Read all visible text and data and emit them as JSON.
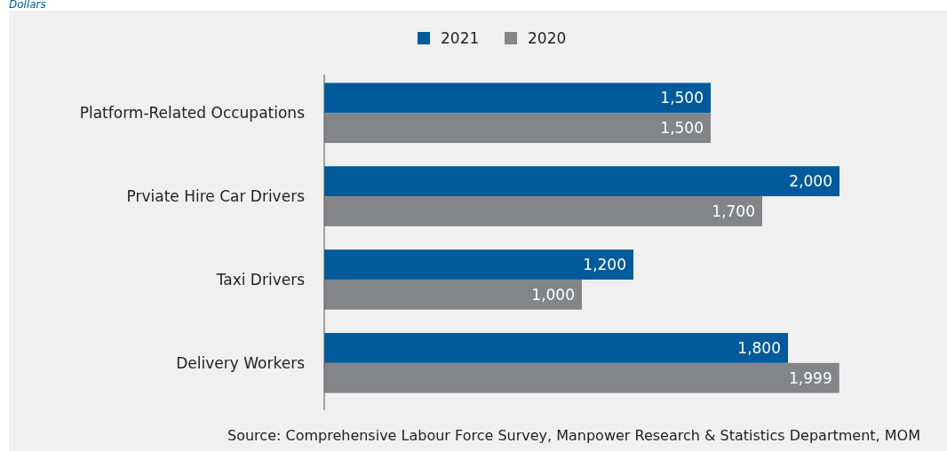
{
  "chart_data": {
    "type": "bar",
    "orientation": "horizontal",
    "categories": [
      "Platform-Related Occupations",
      "Prviate Hire Car Drivers",
      "Taxi Drivers",
      "Delivery Workers"
    ],
    "series": [
      {
        "name": "2021",
        "color": "#005a9c",
        "values": [
          1500,
          2000,
          1200,
          1800
        ],
        "value_labels": [
          "1,500",
          "2,000",
          "1,200",
          "1,800"
        ]
      },
      {
        "name": "2020",
        "color": "#848589",
        "values": [
          1500,
          1700,
          1000,
          1999
        ],
        "value_labels": [
          "1,500",
          "1,700",
          "1,000",
          "1,999"
        ]
      }
    ],
    "legend": "top",
    "annotations": [
      "Dollars",
      "Source: Comprehensive Labour Force Survey, Manpower Research & Statistics Department, MOM"
    ]
  }
}
